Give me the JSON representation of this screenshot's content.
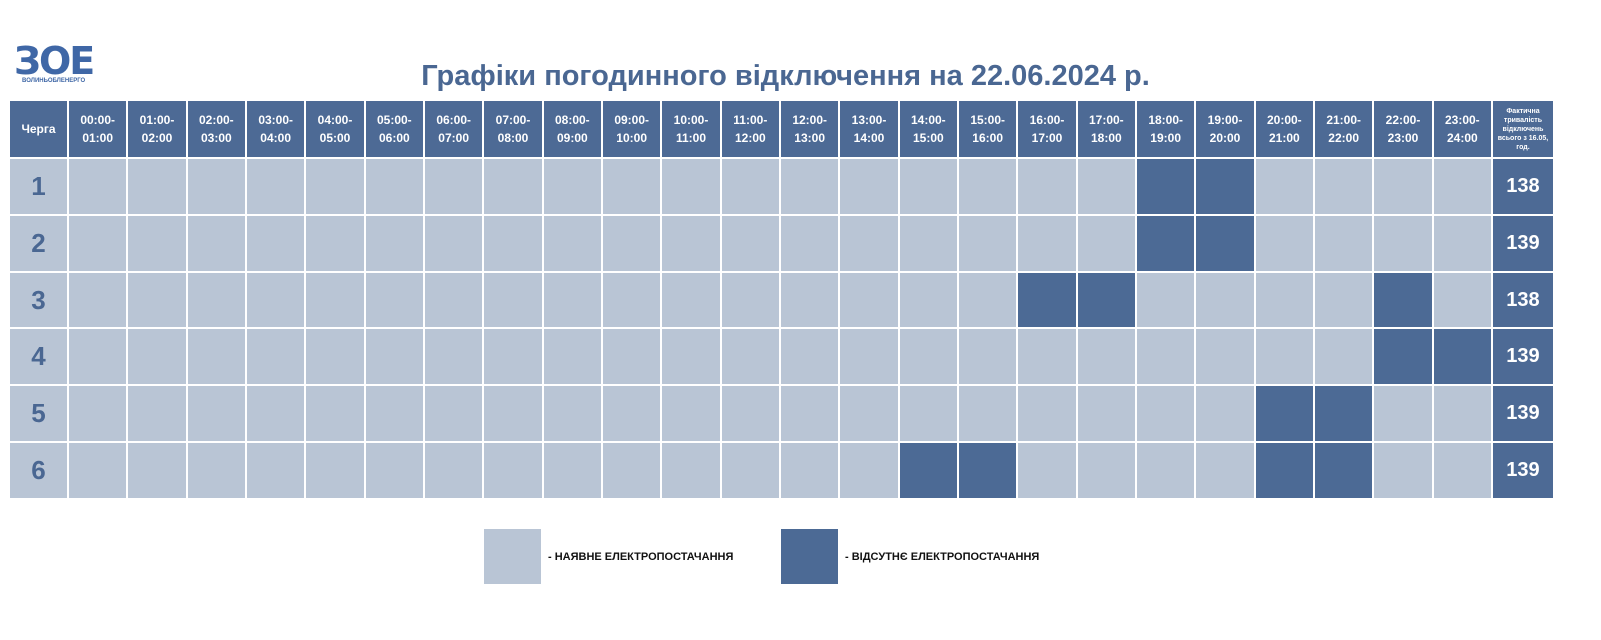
{
  "logo": {
    "mark": "ЗОЕ",
    "caption": "ВОЛИНЬОБЛЕНЕРГО"
  },
  "title": "Графіки погодинного відключення на 22.06.2024 р.",
  "table": {
    "queue_header": "Черга",
    "hours": [
      {
        "from": "00:00-",
        "to": "01:00"
      },
      {
        "from": "01:00-",
        "to": "02:00"
      },
      {
        "from": "02:00-",
        "to": "03:00"
      },
      {
        "from": "03:00-",
        "to": "04:00"
      },
      {
        "from": "04:00-",
        "to": "05:00"
      },
      {
        "from": "05:00-",
        "to": "06:00"
      },
      {
        "from": "06:00-",
        "to": "07:00"
      },
      {
        "from": "07:00-",
        "to": "08:00"
      },
      {
        "from": "08:00-",
        "to": "09:00"
      },
      {
        "from": "09:00-",
        "to": "10:00"
      },
      {
        "from": "10:00-",
        "to": "11:00"
      },
      {
        "from": "11:00-",
        "to": "12:00"
      },
      {
        "from": "12:00-",
        "to": "13:00"
      },
      {
        "from": "13:00-",
        "to": "14:00"
      },
      {
        "from": "14:00-",
        "to": "15:00"
      },
      {
        "from": "15:00-",
        "to": "16:00"
      },
      {
        "from": "16:00-",
        "to": "17:00"
      },
      {
        "from": "17:00-",
        "to": "18:00"
      },
      {
        "from": "18:00-",
        "to": "19:00"
      },
      {
        "from": "19:00-",
        "to": "20:00"
      },
      {
        "from": "20:00-",
        "to": "21:00"
      },
      {
        "from": "21:00-",
        "to": "22:00"
      },
      {
        "from": "22:00-",
        "to": "23:00"
      },
      {
        "from": "23:00-",
        "to": "24:00"
      }
    ],
    "total_header": "Фактична тривалість відключень всього з 16.05, год.",
    "rows": [
      {
        "queue": 1,
        "cells": [
          0,
          0,
          0,
          0,
          0,
          0,
          0,
          0,
          0,
          0,
          0,
          0,
          0,
          0,
          0,
          0,
          0,
          0,
          1,
          1,
          0,
          0,
          0,
          0
        ],
        "total": 138
      },
      {
        "queue": 2,
        "cells": [
          0,
          0,
          0,
          0,
          0,
          0,
          0,
          0,
          0,
          0,
          0,
          0,
          0,
          0,
          0,
          0,
          0,
          0,
          1,
          1,
          0,
          0,
          0,
          0
        ],
        "total": 139
      },
      {
        "queue": 3,
        "cells": [
          0,
          0,
          0,
          0,
          0,
          0,
          0,
          0,
          0,
          0,
          0,
          0,
          0,
          0,
          0,
          0,
          1,
          1,
          0,
          0,
          0,
          0,
          1,
          0
        ],
        "total": 138
      },
      {
        "queue": 4,
        "cells": [
          0,
          0,
          0,
          0,
          0,
          0,
          0,
          0,
          0,
          0,
          0,
          0,
          0,
          0,
          0,
          0,
          0,
          0,
          0,
          0,
          0,
          0,
          1,
          1
        ],
        "total": 139
      },
      {
        "queue": 5,
        "cells": [
          0,
          0,
          0,
          0,
          0,
          0,
          0,
          0,
          0,
          0,
          0,
          0,
          0,
          0,
          0,
          0,
          0,
          0,
          0,
          0,
          1,
          1,
          0,
          0
        ],
        "total": 139
      },
      {
        "queue": 6,
        "cells": [
          0,
          0,
          0,
          0,
          0,
          0,
          0,
          0,
          0,
          0,
          0,
          0,
          0,
          0,
          1,
          1,
          0,
          0,
          0,
          0,
          1,
          1,
          0,
          0
        ],
        "total": 139
      }
    ]
  },
  "legend": [
    {
      "label": "- НАЯВНЕ ЕЛЕКТРОПОСТАЧАННЯ",
      "color": "#b9c5d5"
    },
    {
      "label": "- ВІДСУТНЄ ЕЛЕКТРОПОСТАЧАННЯ",
      "color": "#4c6a95"
    }
  ]
}
